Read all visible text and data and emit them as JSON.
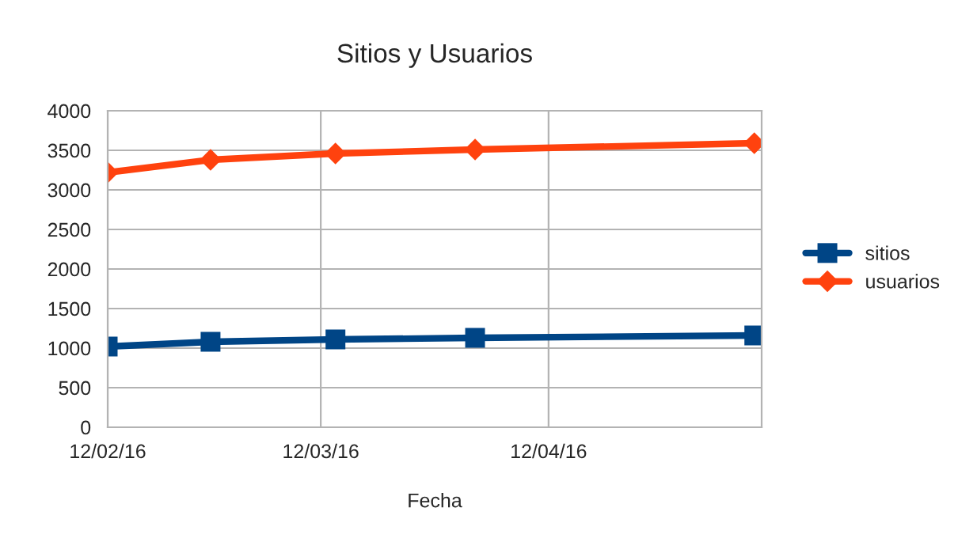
{
  "chart_data": {
    "type": "line",
    "title": "Sitios y Usuarios",
    "xlabel": "Fecha",
    "x": [
      "2016-02-12",
      "2016-02-26",
      "2016-03-14",
      "2016-04-02",
      "2016-05-10"
    ],
    "series": [
      {
        "name": "sitios",
        "color": "#004586",
        "marker": "square",
        "values": [
          1020,
          1080,
          1110,
          1130,
          1160
        ]
      },
      {
        "name": "usuarios",
        "color": "#ff420e",
        "marker": "diamond",
        "values": [
          3220,
          3380,
          3460,
          3510,
          3590
        ]
      }
    ],
    "xlim": [
      "2016-02-12",
      "2016-05-11"
    ],
    "xticks": [
      {
        "value": "2016-02-12",
        "label": "12/02/16"
      },
      {
        "value": "2016-03-12",
        "label": "12/03/16"
      },
      {
        "value": "2016-04-12",
        "label": "12/04/16"
      }
    ],
    "ylim": [
      0,
      4000
    ],
    "yticks": [
      0,
      500,
      1000,
      1500,
      2000,
      2500,
      3000,
      3500,
      4000
    ],
    "grid": true,
    "legend": "right",
    "line_style": "solid"
  }
}
